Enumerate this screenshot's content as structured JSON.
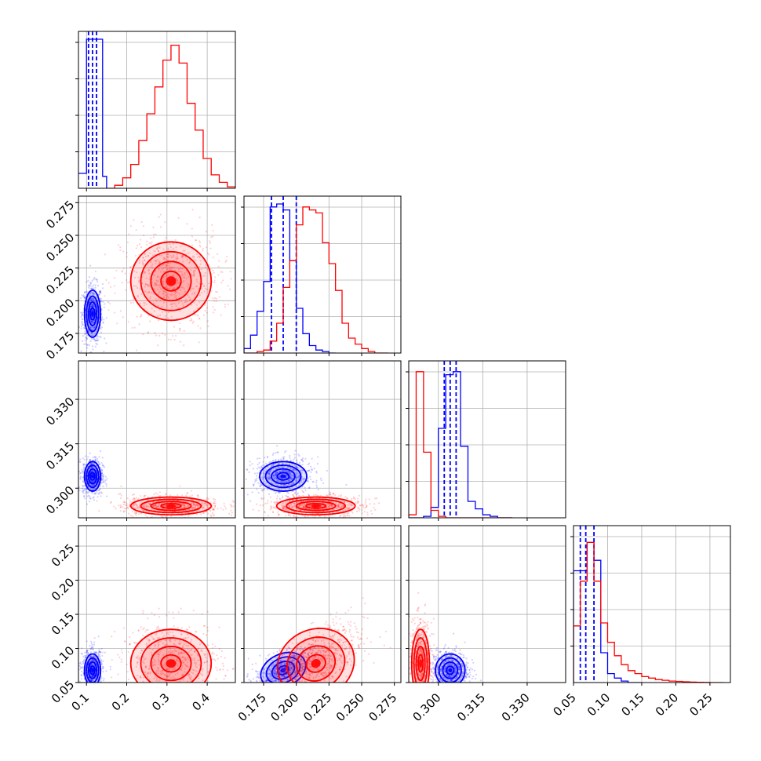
{
  "chart_data": {
    "type": "corner",
    "title": "",
    "grid": true,
    "series": [
      {
        "key": "blue",
        "color": "#0000ff",
        "medians": [
          0.115,
          0.19,
          0.304,
          0.068
        ],
        "quantiles_16": [
          0.105,
          0.181,
          0.302,
          0.06
        ],
        "quantiles_84": [
          0.125,
          0.2,
          0.306,
          0.08
        ],
        "sd": [
          0.01,
          0.009,
          0.0025,
          0.012
        ],
        "hists": [
          {
            "edges": [
              0.0,
              0.1,
              0.11,
              0.12,
              0.13,
              0.14,
              0.15
            ],
            "heights": [
              0.1,
              1.0,
              1.0,
              1.0,
              1.0,
              0.08
            ]
          },
          {
            "edges": [
              0.16,
              0.165,
              0.17,
              0.175,
              0.18,
              0.185,
              0.19,
              0.195,
              0.2,
              0.205,
              0.21,
              0.215,
              0.22,
              0.225,
              0.23
            ],
            "heights": [
              0.03,
              0.12,
              0.28,
              0.48,
              0.98,
              1.0,
              0.96,
              0.62,
              0.3,
              0.13,
              0.05,
              0.02,
              0.01,
              0.0
            ]
          },
          {
            "edges": [
              0.29,
              0.2925,
              0.295,
              0.2975,
              0.3,
              0.3025,
              0.305,
              0.3075,
              0.31,
              0.3125,
              0.315,
              0.3175,
              0.32,
              0.3225,
              0.325
            ],
            "heights": [
              0.0,
              0.0,
              0.01,
              0.07,
              0.6,
              0.96,
              0.98,
              0.48,
              0.11,
              0.06,
              0.02,
              0.01,
              0.0,
              0.0
            ]
          },
          {
            "edges": [
              0.05,
              0.06,
              0.07,
              0.08,
              0.09,
              0.1,
              0.11,
              0.12,
              0.13,
              0.14,
              0.15
            ],
            "heights": [
              0.75,
              0.75,
              0.94,
              0.82,
              0.2,
              0.06,
              0.03,
              0.01,
              0.0,
              0.0
            ]
          }
        ]
      },
      {
        "key": "red",
        "color": "#ff0000",
        "medians": [
          0.31,
          0.215,
          0.294,
          0.078
        ],
        "sd": [
          0.05,
          0.015,
          0.0015,
          0.025
        ],
        "hists": [
          {
            "edges": [
              0.15,
              0.17,
              0.19,
              0.21,
              0.23,
              0.25,
              0.27,
              0.29,
              0.31,
              0.33,
              0.35,
              0.37,
              0.39,
              0.41,
              0.43,
              0.45,
              0.47
            ],
            "heights": [
              0.0,
              0.02,
              0.07,
              0.16,
              0.32,
              0.5,
              0.68,
              0.86,
              0.96,
              0.84,
              0.57,
              0.39,
              0.2,
              0.09,
              0.04,
              0.01
            ]
          },
          {
            "edges": [
              0.16,
              0.165,
              0.17,
              0.175,
              0.18,
              0.185,
              0.19,
              0.195,
              0.2,
              0.205,
              0.21,
              0.215,
              0.22,
              0.225,
              0.23,
              0.235,
              0.24,
              0.245,
              0.25,
              0.255,
              0.26,
              0.265,
              0.27
            ],
            "heights": [
              0.0,
              0.0,
              0.01,
              0.02,
              0.08,
              0.2,
              0.44,
              0.62,
              0.86,
              0.98,
              0.96,
              0.94,
              0.74,
              0.6,
              0.42,
              0.2,
              0.1,
              0.06,
              0.03,
              0.01,
              0.0,
              0.0
            ]
          },
          {
            "edges": [
              0.29,
              0.2925,
              0.295,
              0.2975,
              0.3,
              0.3025,
              0.305,
              0.3075,
              0.31,
              0.3125,
              0.315,
              0.3175,
              0.32,
              0.3225,
              0.325
            ],
            "heights": [
              0.02,
              0.98,
              0.44,
              0.05,
              0.01,
              0.0,
              0.0,
              0.0,
              0.0,
              0.0,
              0.0,
              0.0,
              0.0,
              0.0
            ]
          },
          {
            "edges": [
              0.05,
              0.06,
              0.07,
              0.08,
              0.09,
              0.1,
              0.11,
              0.12,
              0.13,
              0.14,
              0.15,
              0.16,
              0.17,
              0.18,
              0.19,
              0.2,
              0.21,
              0.22,
              0.23,
              0.24,
              0.25,
              0.26,
              0.27
            ],
            "heights": [
              0.38,
              0.68,
              0.94,
              0.68,
              0.4,
              0.27,
              0.18,
              0.12,
              0.08,
              0.06,
              0.04,
              0.03,
              0.02,
              0.015,
              0.01,
              0.008,
              0.005,
              0.003,
              0.002,
              0.001,
              0.0,
              0.0
            ]
          }
        ]
      }
    ],
    "axes": [
      {
        "lim": [
          0.08,
          0.47
        ],
        "ticks": [
          0.1,
          0.2,
          0.3,
          0.4
        ],
        "tick_labels": [
          "0.1",
          "0.2",
          "0.3",
          "0.4"
        ]
      },
      {
        "lim": [
          0.16,
          0.28
        ],
        "ticks": [
          0.175,
          0.2,
          0.225,
          0.25,
          0.275
        ],
        "tick_labels": [
          "0.175",
          "0.200",
          "0.225",
          "0.250",
          "0.275"
        ]
      },
      {
        "lim": [
          0.29,
          0.343
        ],
        "ticks": [
          0.3,
          0.315,
          0.33
        ],
        "tick_labels": [
          "0.300",
          "0.315",
          "0.330"
        ]
      },
      {
        "lim": [
          0.05,
          0.28
        ],
        "ticks": [
          0.05,
          0.1,
          0.15,
          0.2,
          0.25
        ],
        "tick_labels": [
          "0.05",
          "0.10",
          "0.15",
          "0.20",
          "0.25"
        ]
      }
    ],
    "panels": [
      {
        "type": "hist",
        "row": 0,
        "col": 0
      },
      {
        "type": "scatter",
        "row": 1,
        "col": 0,
        "ticks_y": [
          0.175,
          0.2,
          0.225,
          0.25,
          0.275
        ],
        "tick_labels_y": [
          "0.175",
          "0.200",
          "0.225",
          "0.250",
          "0.275"
        ]
      },
      {
        "type": "hist",
        "row": 1,
        "col": 1
      },
      {
        "type": "scatter",
        "row": 2,
        "col": 0,
        "ticks_y": [
          0.3,
          0.315,
          0.33
        ],
        "tick_labels_y": [
          "0.300",
          "0.315",
          "0.330"
        ]
      },
      {
        "type": "scatter",
        "row": 2,
        "col": 1
      },
      {
        "type": "hist",
        "row": 2,
        "col": 2
      },
      {
        "type": "scatter",
        "row": 3,
        "col": 0,
        "ticks_y": [
          0.05,
          0.1,
          0.15,
          0.2,
          0.25
        ],
        "tick_labels_y": [
          "0.05",
          "0.10",
          "0.15",
          "0.20",
          "0.25"
        ]
      },
      {
        "type": "scatter",
        "row": 3,
        "col": 1
      },
      {
        "type": "scatter",
        "row": 3,
        "col": 2
      },
      {
        "type": "hist",
        "row": 3,
        "col": 3
      }
    ]
  }
}
